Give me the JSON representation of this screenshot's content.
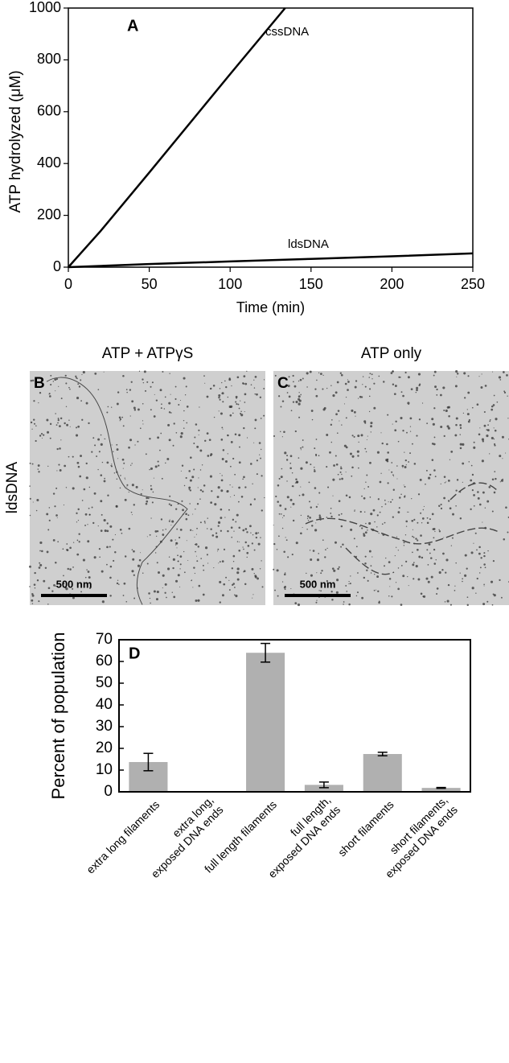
{
  "chart_data": [
    {
      "type": "line",
      "label": "A",
      "xlabel": "Time (min)",
      "ylabel": "ATP hydrolyzed (μM)",
      "xlim": [
        0,
        250
      ],
      "ylim": [
        0,
        1000
      ],
      "xticks": [
        0,
        50,
        100,
        150,
        200,
        250
      ],
      "yticks": [
        0,
        200,
        400,
        600,
        800,
        1000
      ],
      "series": [
        {
          "name": "cssDNA",
          "color": "#000000",
          "x": [
            0,
            5,
            10,
            20,
            50,
            100,
            134
          ],
          "values": [
            0,
            35,
            70,
            140,
            365,
            745,
            1000
          ]
        },
        {
          "name": "ldsDNA",
          "color": "#000000",
          "x": [
            0,
            50,
            100,
            150,
            200,
            250
          ],
          "values": [
            0,
            12,
            22,
            32,
            42,
            53
          ]
        }
      ]
    },
    {
      "type": "bar",
      "label": "D",
      "ylabel": "Percent of population",
      "categories": [
        [
          "extra long filaments"
        ],
        [
          "extra long,",
          "exposed DNA ends"
        ],
        [
          "full length filaments"
        ],
        [
          "full length,",
          "exposed DNA ends"
        ],
        [
          "short filaments"
        ],
        [
          "short filaments,",
          "exposed DNA ends"
        ]
      ],
      "values": [
        13.7,
        0,
        64,
        3.2,
        17.4,
        1.8
      ],
      "errors": [
        4,
        0,
        4.3,
        1.3,
        0.8,
        0.2
      ],
      "color": "#b0b0b0",
      "ylim": [
        0,
        70
      ],
      "yticks": [
        0,
        10,
        20,
        30,
        40,
        50,
        60,
        70
      ]
    }
  ],
  "micrographs": {
    "row_label": "ldsDNA",
    "panels": [
      {
        "label": "B",
        "title": "ATP + ATPγS",
        "scale_bar": "500 nm"
      },
      {
        "label": "C",
        "title": "ATP only",
        "scale_bar": "500 nm"
      }
    ]
  }
}
